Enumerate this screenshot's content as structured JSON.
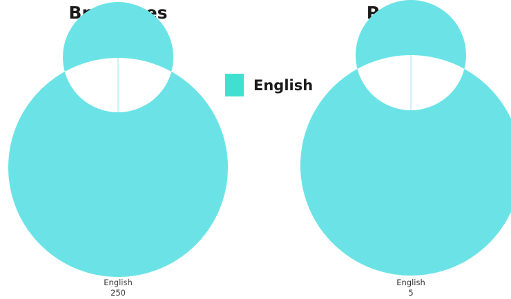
{
  "chart_data": [
    {
      "type": "pie",
      "title": "Brochures",
      "categories": [
        "English"
      ],
      "values": [
        250
      ],
      "colors": [
        "#6be3e6"
      ]
    },
    {
      "type": "pie",
      "title": "Posters",
      "categories": [
        "English"
      ],
      "values": [
        5
      ],
      "colors": [
        "#6be3e6"
      ]
    }
  ],
  "legend": {
    "items": [
      {
        "label": "English",
        "color": "#40e0d0"
      }
    ],
    "placement": "center-top"
  }
}
